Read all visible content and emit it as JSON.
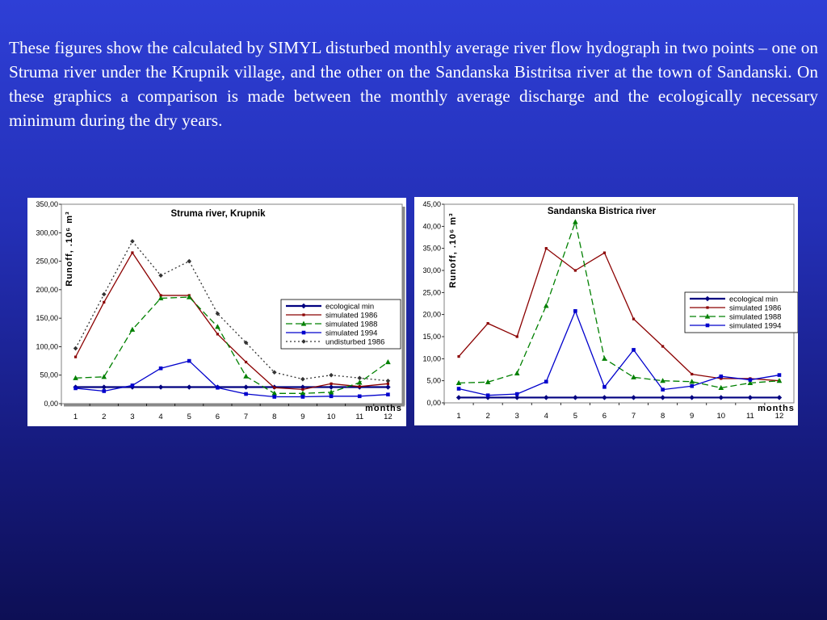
{
  "intro_text": "These figures show the calculated by SIMYL disturbed monthly average river flow hydograph in two points – one on Struma river under the Krupnik village, and the other on the Sandanska Bistritsa river at the town of Sandanski. On these graphics a comparison is made between the monthly average discharge and the ecologically necessary minimum during the dry years.",
  "chart_data": [
    {
      "type": "line",
      "title": "Struma river, Krupnik",
      "ylabel": "Runoff,  .10⁶ m³",
      "xlabel": "months",
      "categories": [
        "1",
        "2",
        "3",
        "4",
        "5",
        "6",
        "7",
        "8",
        "9",
        "10",
        "11",
        "12"
      ],
      "ylim": [
        0,
        350
      ],
      "yticks": [
        "0,00",
        "50,00",
        "100,00",
        "150,00",
        "200,00",
        "250,00",
        "300,00",
        "350,00"
      ],
      "legend_position": "right",
      "series": [
        {
          "name": "ecological min",
          "color": "#000080",
          "values": [
            29,
            29,
            29,
            29,
            29,
            29,
            29,
            29,
            29,
            29,
            29,
            29
          ]
        },
        {
          "name": "simulated 1986",
          "color": "#8b0000",
          "values": [
            82,
            178,
            265,
            190,
            190,
            122,
            73,
            28,
            25,
            35,
            30,
            35
          ]
        },
        {
          "name": "simulated 1988",
          "color": "#008000",
          "values": [
            45,
            47,
            130,
            185,
            187,
            135,
            48,
            18,
            18,
            20,
            37,
            73
          ]
        },
        {
          "name": "simulated 1994",
          "color": "#0000cc",
          "values": [
            27,
            22,
            32,
            62,
            75,
            28,
            17,
            12,
            12,
            13,
            13,
            16
          ]
        },
        {
          "name": "undisturbed 1986",
          "color": "#333333",
          "values": [
            97,
            192,
            285,
            225,
            250,
            158,
            107,
            55,
            43,
            50,
            45,
            40
          ]
        }
      ]
    },
    {
      "type": "line",
      "title": "Sandanska Bistrica river",
      "ylabel": "Runoff, .10⁶ m³",
      "xlabel": "months",
      "categories": [
        "1",
        "2",
        "3",
        "4",
        "5",
        "6",
        "7",
        "8",
        "9",
        "10",
        "11",
        "12"
      ],
      "ylim": [
        0,
        45
      ],
      "yticks": [
        "0,00",
        "5,00",
        "10,00",
        "15,00",
        "20,00",
        "25,00",
        "30,00",
        "35,00",
        "40,00",
        "45,00"
      ],
      "legend_position": "right",
      "series": [
        {
          "name": "ecological min",
          "color": "#000080",
          "values": [
            1.2,
            1.2,
            1.2,
            1.2,
            1.2,
            1.2,
            1.2,
            1.2,
            1.2,
            1.2,
            1.2,
            1.2
          ]
        },
        {
          "name": "simulated 1986",
          "color": "#8b0000",
          "values": [
            10.5,
            18,
            15,
            35,
            30,
            34,
            19,
            12.8,
            6.5,
            5.5,
            5.5,
            5
          ]
        },
        {
          "name": "simulated 1988",
          "color": "#008000",
          "values": [
            4.5,
            4.7,
            6.7,
            22,
            41,
            10,
            5.8,
            5,
            4.8,
            3.4,
            4.5,
            5
          ]
        },
        {
          "name": "simulated 1994",
          "color": "#0000cc",
          "values": [
            3.2,
            1.7,
            2,
            4.8,
            20.8,
            3.6,
            12,
            3,
            3.8,
            6,
            5.2,
            6.3
          ]
        }
      ]
    }
  ]
}
